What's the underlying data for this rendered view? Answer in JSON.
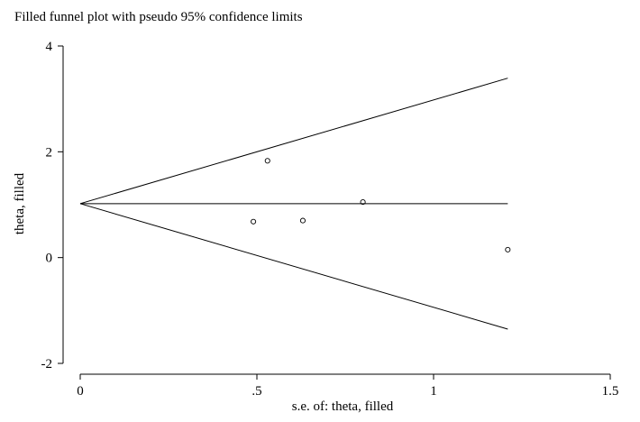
{
  "chart_data": {
    "type": "scatter",
    "title": "Filled funnel plot with pseudo 95% confidence limits",
    "xlabel": "s.e. of: theta, filled",
    "ylabel": "theta, filled",
    "xlim": [
      0,
      1.5
    ],
    "ylim": [
      -2,
      4
    ],
    "x_ticks": [
      {
        "value": 0,
        "label": "0"
      },
      {
        "value": 0.5,
        "label": ".5"
      },
      {
        "value": 1,
        "label": "1"
      },
      {
        "value": 1.5,
        "label": "1.5"
      }
    ],
    "y_ticks": [
      {
        "value": -2,
        "label": "-2"
      },
      {
        "value": 0,
        "label": "0"
      },
      {
        "value": 2,
        "label": "2"
      },
      {
        "value": 4,
        "label": "4"
      }
    ],
    "points": [
      {
        "x": 0.49,
        "y": 0.68
      },
      {
        "x": 0.53,
        "y": 1.83
      },
      {
        "x": 0.63,
        "y": 0.7
      },
      {
        "x": 0.8,
        "y": 1.05
      },
      {
        "x": 1.21,
        "y": 0.15
      }
    ],
    "pooled_estimate": 1.02,
    "line_x_max": 1.21,
    "grid": false,
    "colors": {
      "lines": "#000000",
      "markers": "#000000"
    }
  }
}
